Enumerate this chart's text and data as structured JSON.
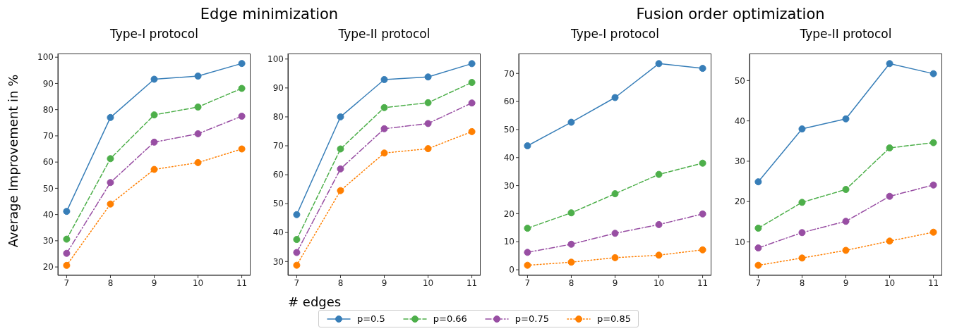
{
  "chart_data": [
    {
      "type": "line",
      "title": "Type-I protocol",
      "annotations": [
        "Edge minimization"
      ],
      "ylabel": "Average Improvement in %",
      "legend": "bottom",
      "marker": "circle",
      "grid": false,
      "x": [
        7,
        8,
        9,
        10,
        11
      ],
      "xlim": [
        6.8,
        11.2
      ],
      "xticks": [
        7,
        8,
        9,
        10,
        11
      ],
      "ylim": [
        16.8,
        101.4
      ],
      "yticks": [
        20,
        30,
        40,
        50,
        60,
        70,
        80,
        90,
        100
      ],
      "series": [
        {
          "name": "p=0.5",
          "color": "#377eb8",
          "line_style": "solid",
          "values": [
            41.2,
            77,
            91.6,
            92.8,
            97.6
          ]
        },
        {
          "name": "p=0.66",
          "color": "#4daf4a",
          "line_style": "dashed",
          "values": [
            30.6,
            61.3,
            78,
            81,
            88.1
          ]
        },
        {
          "name": "p=0.75",
          "color": "#984ea3",
          "line_style": "dashdot",
          "values": [
            25.2,
            52.2,
            67.6,
            70.8,
            77.5
          ]
        },
        {
          "name": "p=0.85",
          "color": "#ff7f00",
          "line_style": "dotted",
          "values": [
            20.6,
            44,
            57.2,
            59.8,
            65
          ]
        }
      ]
    },
    {
      "type": "line",
      "title": "Type-II protocol",
      "xlabel": "# edges",
      "marker": "circle",
      "grid": false,
      "x": [
        7,
        8,
        9,
        10,
        11
      ],
      "xlim": [
        6.8,
        11.2
      ],
      "xticks": [
        7,
        8,
        9,
        10,
        11
      ],
      "ylim": [
        25.2,
        101.9
      ],
      "yticks": [
        30,
        40,
        50,
        60,
        70,
        80,
        90,
        100
      ],
      "series": [
        {
          "color": "#377eb8",
          "line_style": "solid",
          "values": [
            46.2,
            80,
            92.9,
            93.8,
            98.4
          ]
        },
        {
          "color": "#4daf4a",
          "line_style": "dashed",
          "values": [
            37.6,
            68.9,
            83.2,
            84.9,
            91.9
          ]
        },
        {
          "color": "#984ea3",
          "line_style": "dashdot",
          "values": [
            33.1,
            62,
            75.9,
            77.7,
            84.8
          ]
        },
        {
          "color": "#ff7f00",
          "line_style": "dotted",
          "values": [
            28.7,
            54.5,
            67.5,
            69,
            74.9
          ]
        }
      ]
    },
    {
      "type": "line",
      "title": "Type-I protocol",
      "annotations": [
        "Fusion order optimization"
      ],
      "marker": "circle",
      "grid": false,
      "x": [
        7,
        8,
        9,
        10,
        11
      ],
      "xlim": [
        6.8,
        11.2
      ],
      "xticks": [
        7,
        8,
        9,
        10,
        11
      ],
      "ylim": [
        -2,
        77.1
      ],
      "yticks": [
        0,
        10,
        20,
        30,
        40,
        50,
        60,
        70
      ],
      "series": [
        {
          "color": "#377eb8",
          "line_style": "solid",
          "values": [
            44.2,
            52.6,
            61.4,
            73.5,
            71.8
          ]
        },
        {
          "color": "#4daf4a",
          "line_style": "dashed",
          "values": [
            14.8,
            20.3,
            27.1,
            34,
            38
          ]
        },
        {
          "color": "#984ea3",
          "line_style": "dashdot",
          "values": [
            6.2,
            9.1,
            13,
            16.1,
            19.9
          ]
        },
        {
          "color": "#ff7f00",
          "line_style": "dotted",
          "values": [
            1.6,
            2.7,
            4.3,
            5.2,
            7.1
          ]
        }
      ]
    },
    {
      "type": "line",
      "title": "Type-II protocol",
      "marker": "circle",
      "grid": false,
      "x": [
        7,
        8,
        9,
        10,
        11
      ],
      "xlim": [
        6.8,
        11.2
      ],
      "xticks": [
        7,
        8,
        9,
        10,
        11
      ],
      "ylim": [
        1.7,
        56.7
      ],
      "yticks": [
        10,
        20,
        30,
        40,
        50
      ],
      "series": [
        {
          "color": "#377eb8",
          "line_style": "solid",
          "values": [
            24.9,
            38,
            40.5,
            54.2,
            51.7
          ]
        },
        {
          "color": "#4daf4a",
          "line_style": "dashed",
          "values": [
            13.4,
            19.8,
            23,
            33.3,
            34.6
          ]
        },
        {
          "color": "#984ea3",
          "line_style": "dashdot",
          "values": [
            8.5,
            12.3,
            15.1,
            21.3,
            24.1
          ]
        },
        {
          "color": "#ff7f00",
          "line_style": "dotted",
          "values": [
            4.2,
            6,
            7.9,
            10.2,
            12.4
          ]
        }
      ]
    }
  ]
}
